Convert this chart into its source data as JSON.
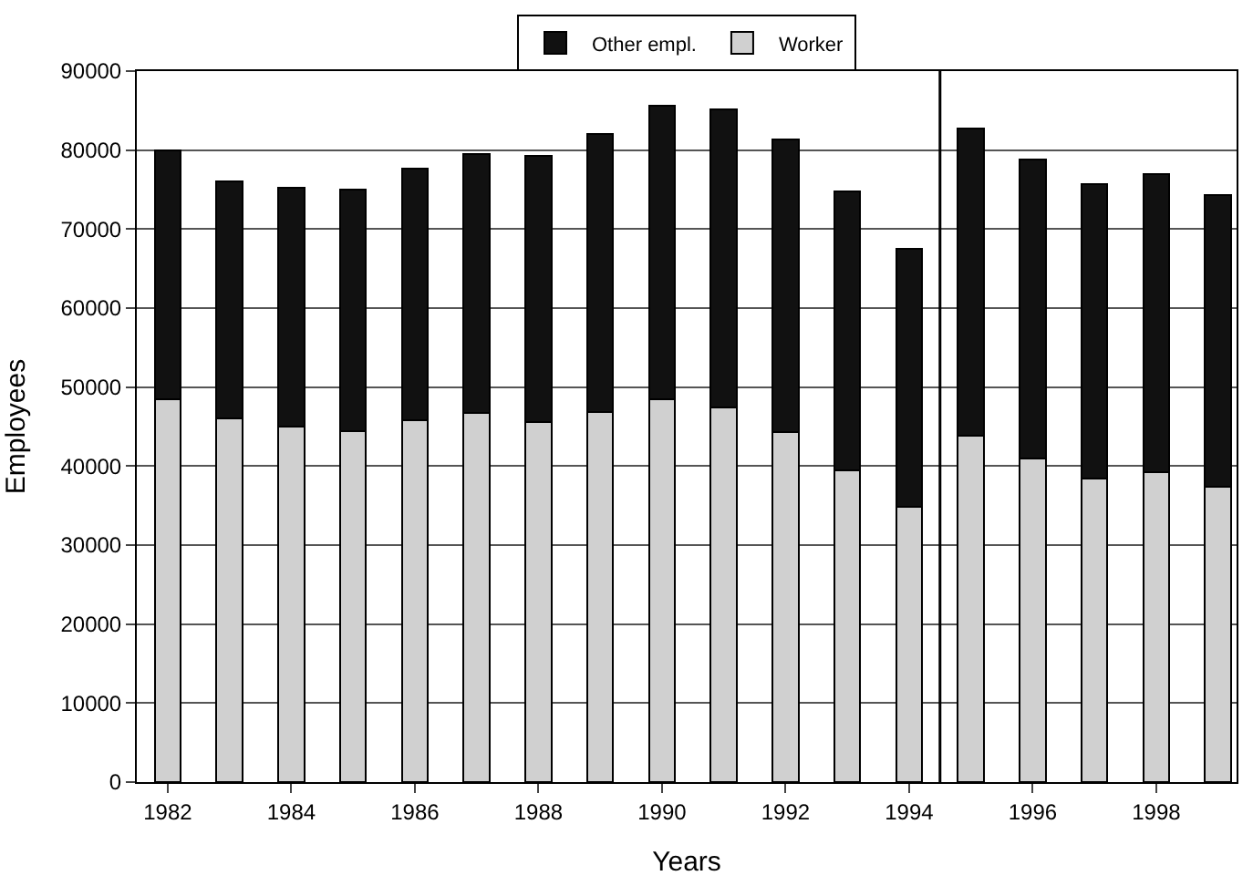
{
  "chart_data": {
    "type": "bar",
    "stacked": true,
    "xlabel": "Years",
    "ylabel": "Employees",
    "x": [
      1982,
      1983,
      1984,
      1985,
      1986,
      1987,
      1988,
      1989,
      1990,
      1991,
      1992,
      1993,
      1994,
      1995,
      1996,
      1997,
      1998,
      1999
    ],
    "series": [
      {
        "name": "Worker",
        "color": "#d0d0d0",
        "values": [
          48500,
          46000,
          45000,
          44400,
          45800,
          46700,
          45600,
          46900,
          48500,
          47400,
          44300,
          39500,
          34800,
          43800,
          41000,
          38400,
          39200,
          37400
        ]
      },
      {
        "name": "Other empl.",
        "color": "#111111",
        "values": [
          31500,
          30000,
          30200,
          30600,
          31900,
          32800,
          33700,
          35100,
          37100,
          37800,
          37100,
          35300,
          32700,
          38900,
          37800,
          37300,
          37800,
          36900
        ]
      }
    ],
    "xlim": [
      1981.5,
      1999.3
    ],
    "xticks": [
      1982,
      1984,
      1986,
      1988,
      1990,
      1992,
      1994,
      1996,
      1998
    ],
    "ylim": [
      0,
      90000
    ],
    "yticks": [
      0,
      10000,
      20000,
      30000,
      40000,
      50000,
      60000,
      70000,
      80000,
      90000
    ],
    "ref_lines": [
      {
        "axis": "x",
        "value": 1994.5,
        "color": "#000000"
      }
    ],
    "grid": "y",
    "legend": "top"
  }
}
